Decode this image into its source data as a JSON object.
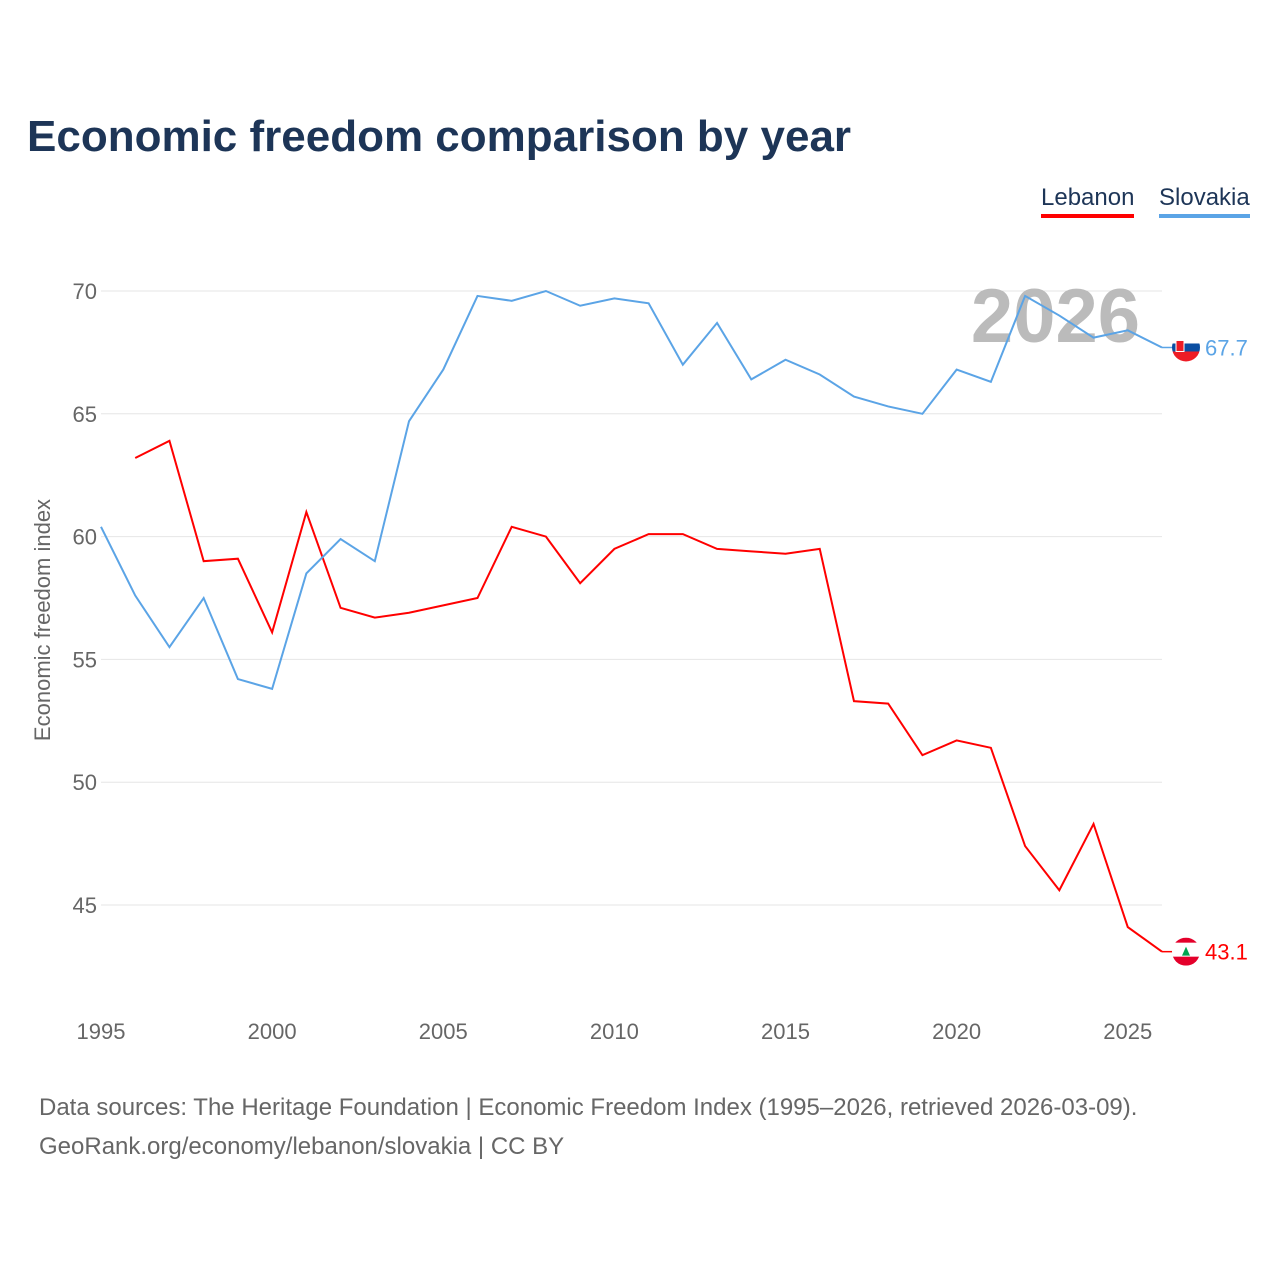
{
  "title": "Economic freedom comparison by year",
  "source_line1": "Data sources: The Heritage Foundation | Economic Freedom Index (1995–2026, retrieved 2026-03-09).",
  "source_line2": "GeoRank.org/economy/lebanon/slovakia | CC BY",
  "chart_data": {
    "type": "line",
    "title": "Economic freedom comparison by year",
    "xlabel": "",
    "ylabel": "Economic freedom index",
    "xlim": [
      1995,
      2026
    ],
    "ylim": [
      41,
      71
    ],
    "xticks": [
      1995,
      2000,
      2005,
      2010,
      2015,
      2020,
      2025
    ],
    "yticks": [
      45,
      50,
      55,
      60,
      65,
      70
    ],
    "grid": true,
    "legend_position": "top-right",
    "year_watermark": "2026",
    "series": [
      {
        "name": "Lebanon",
        "color": "#ff0000",
        "end_label": "43.1",
        "x": [
          1996,
          1997,
          1998,
          1999,
          2000,
          2001,
          2002,
          2003,
          2004,
          2005,
          2006,
          2007,
          2008,
          2009,
          2010,
          2011,
          2012,
          2013,
          2014,
          2015,
          2016,
          2017,
          2018,
          2019,
          2020,
          2021,
          2022,
          2023,
          2024,
          2025,
          2026
        ],
        "values": [
          63.2,
          63.9,
          59.0,
          59.1,
          56.1,
          61.0,
          57.1,
          56.7,
          56.9,
          57.2,
          57.5,
          60.4,
          60.0,
          58.1,
          59.5,
          60.1,
          60.1,
          59.5,
          59.4,
          59.3,
          59.5,
          53.3,
          53.2,
          51.1,
          51.7,
          51.4,
          47.4,
          45.6,
          48.3,
          44.1,
          43.1
        ]
      },
      {
        "name": "Slovakia",
        "color": "#5ba4e6",
        "end_label": "67.7",
        "x": [
          1995,
          1996,
          1997,
          1998,
          1999,
          2000,
          2001,
          2002,
          2003,
          2004,
          2005,
          2006,
          2007,
          2008,
          2009,
          2010,
          2011,
          2012,
          2013,
          2014,
          2015,
          2016,
          2017,
          2018,
          2019,
          2020,
          2021,
          2022,
          2023,
          2024,
          2025,
          2026
        ],
        "values": [
          60.4,
          57.6,
          55.5,
          57.5,
          54.2,
          53.8,
          58.5,
          59.9,
          59.0,
          64.7,
          66.8,
          69.8,
          69.6,
          70.0,
          69.4,
          69.7,
          69.5,
          67.0,
          68.7,
          66.4,
          67.2,
          66.6,
          65.7,
          65.3,
          65.0,
          66.8,
          66.3,
          69.8,
          69.0,
          68.1,
          68.4,
          67.7
        ]
      }
    ]
  }
}
